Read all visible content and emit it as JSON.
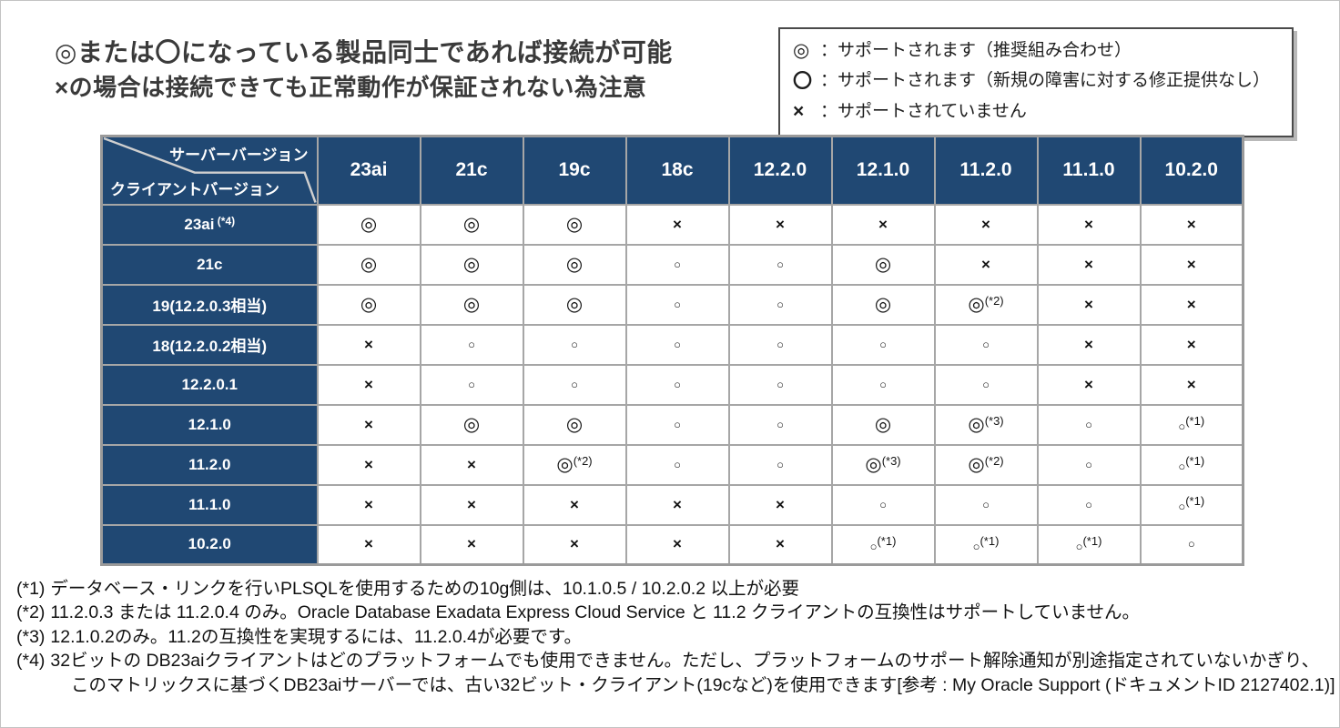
{
  "colors": {
    "header_blue": "#204873",
    "grid_gray": "#a6a6a6",
    "title_gray": "#3a3a3a"
  },
  "title": {
    "line1": "◎または〇になっている製品同士であれば接続が可能",
    "line2": "×の場合は接続できても正常動作が保証されない為注意"
  },
  "legend": {
    "items": [
      {
        "symbol": "◎",
        "text": "：サポートされます（推奨組み合わせ）"
      },
      {
        "symbol": "〇",
        "text": "：サポートされます（新規の障害に対する修正提供なし）"
      },
      {
        "symbol": "×",
        "text": "：サポートされていません"
      }
    ]
  },
  "table": {
    "corner": {
      "top_right": "サーバーバージョン",
      "bottom_left": "クライアントバージョン"
    },
    "columns": [
      "23ai",
      "21c",
      "19c",
      "18c",
      "12.2.0",
      "12.1.0",
      "11.2.0",
      "11.1.0",
      "10.2.0"
    ],
    "rows": [
      {
        "label": "23ai",
        "note": "(*4)",
        "cells": [
          "◎",
          "◎",
          "◎",
          "×",
          "×",
          "×",
          "×",
          "×",
          "×"
        ]
      },
      {
        "label": "21c",
        "note": "",
        "cells": [
          "◎",
          "◎",
          "◎",
          "○",
          "○",
          "◎",
          "×",
          "×",
          "×"
        ]
      },
      {
        "label": "19(12.2.0.3相当)",
        "note": "",
        "cells": [
          "◎",
          "◎",
          "◎",
          "○",
          "○",
          "◎",
          "◎(*2)",
          "×",
          "×"
        ]
      },
      {
        "label": "18(12.2.0.2相当)",
        "note": "",
        "cells": [
          "×",
          "○",
          "○",
          "○",
          "○",
          "○",
          "○",
          "×",
          "×"
        ]
      },
      {
        "label": "12.2.0.1",
        "note": "",
        "cells": [
          "×",
          "○",
          "○",
          "○",
          "○",
          "○",
          "○",
          "×",
          "×"
        ]
      },
      {
        "label": "12.1.0",
        "note": "",
        "cells": [
          "×",
          "◎",
          "◎",
          "○",
          "○",
          "◎",
          "◎(*3)",
          "○",
          "○(*1)"
        ]
      },
      {
        "label": "11.2.0",
        "note": "",
        "cells": [
          "×",
          "×",
          "◎(*2)",
          "○",
          "○",
          "◎(*3)",
          "◎(*2)",
          "○",
          "○(*1)"
        ]
      },
      {
        "label": "11.1.0",
        "note": "",
        "cells": [
          "×",
          "×",
          "×",
          "×",
          "×",
          "○",
          "○",
          "○",
          "○(*1)"
        ]
      },
      {
        "label": "10.2.0",
        "note": "",
        "cells": [
          "×",
          "×",
          "×",
          "×",
          "×",
          "○(*1)",
          "○(*1)",
          "○(*1)",
          "○"
        ]
      }
    ]
  },
  "footnotes": [
    {
      "marker": "(*1)",
      "text": "データベース・リンクを行いPLSQLを使用するための10g側は、10.1.0.5 / 10.2.0.2 以上が必要"
    },
    {
      "marker": "(*2)",
      "text": "11.2.0.3 または 11.2.0.4 のみ。Oracle Database Exadata Express Cloud Service と 11.2 クライアントの互換性はサポートしていません。"
    },
    {
      "marker": "(*3)",
      "text": "12.1.0.2のみ。11.2の互換性を実現するには、11.2.0.4が必要です。"
    },
    {
      "marker": "(*4)",
      "text": "32ビットの DB23aiクライアントはどのプラットフォームでも使用できません。ただし、プラットフォームのサポート解除通知が別途指定されていないかぎり、",
      "text2": "このマトリックスに基づくDB23aiサーバーでは、古い32ビット・クライアント(19cなど)を使用できます"
    }
  ],
  "reference": "[参考 : My Oracle Support (ドキュメントID 2127402.1)]"
}
